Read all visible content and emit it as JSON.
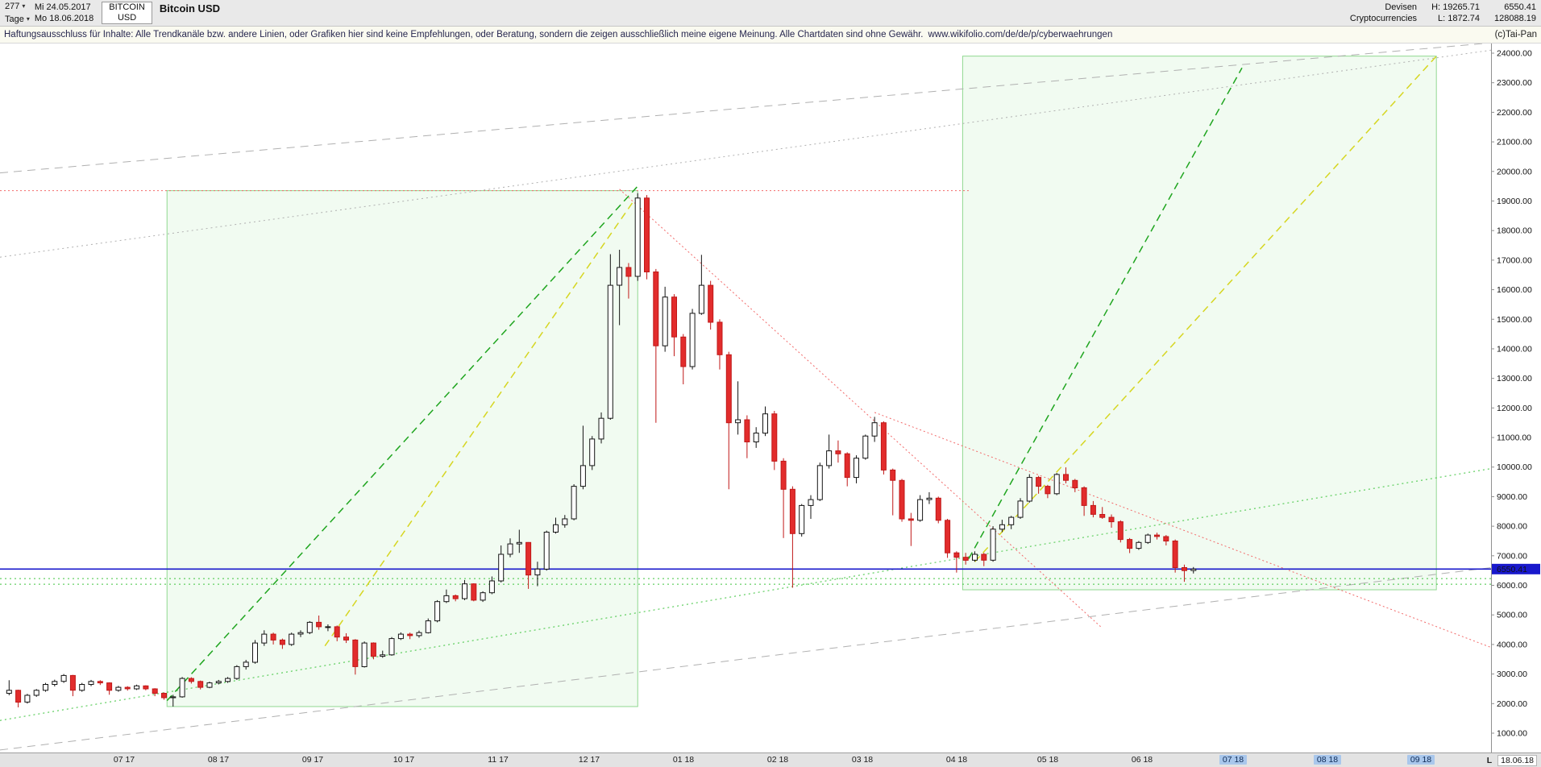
{
  "icons": {
    "caret_down": "▾"
  },
  "header": {
    "bars_count": "277",
    "period": "Tage",
    "date_from": "Mi 24.05.2017",
    "date_to": "Mo 18.06.2018",
    "symbol": "BITCOIN",
    "symbol_currency": "USD",
    "title": "Bitcoin USD",
    "category_line1": "Devisen",
    "category_line2": "Cryptocurrencies",
    "high": "H: 19265.71",
    "low": "L: 1872.74",
    "last": "6550.41",
    "secondary_value": "128088.19"
  },
  "disclaimer": {
    "text": "Haftungsausschluss für Inhalte: Alle Trendkanäle bzw. andere Linien, oder Grafiken hier sind keine Empfehlungen, oder Beratung, sondern die zeigen ausschließlich meine eigene Meinung. Alle Chartdaten sind ohne Gewähr.",
    "link": "www.wikifolio.com/de/de/p/cyberwaehrungen",
    "copyright": "(c)Tai-Pan"
  },
  "x_axis_end": {
    "prefix": "L",
    "date": "18.06.18"
  },
  "chart_data": {
    "type": "candlestick",
    "title": "Bitcoin USD, daily candles, 24.05.2017 - 18.06.2018",
    "x_unit": "days since 2017-05-24",
    "domain": {
      "day_min": -3,
      "day_max": 488,
      "price_top": 24000,
      "price_bottom": 1000
    },
    "y_axis": {
      "ticks": [
        1000,
        2000,
        3000,
        4000,
        5000,
        6000,
        7000,
        8000,
        9000,
        10000,
        11000,
        12000,
        13000,
        14000,
        15000,
        16000,
        17000,
        18000,
        19000,
        20000,
        21000,
        22000,
        23000,
        24000
      ],
      "format": "x.00"
    },
    "x_ticks": [
      {
        "label": "07 17",
        "day": 38
      },
      {
        "label": "08 17",
        "day": 69
      },
      {
        "label": "09 17",
        "day": 100
      },
      {
        "label": "10 17",
        "day": 130
      },
      {
        "label": "11 17",
        "day": 161
      },
      {
        "label": "12 17",
        "day": 191
      },
      {
        "label": "01 18",
        "day": 222
      },
      {
        "label": "02 18",
        "day": 253
      },
      {
        "label": "03 18",
        "day": 281
      },
      {
        "label": "04 18",
        "day": 312
      },
      {
        "label": "05 18",
        "day": 342
      },
      {
        "label": "06 18",
        "day": 373
      },
      {
        "label": "07 18",
        "day": 403,
        "future": true
      },
      {
        "label": "08 18",
        "day": 434,
        "future": true
      },
      {
        "label": "09 18",
        "day": 465,
        "future": true
      }
    ],
    "last_price_marker": {
      "value": 6550.41,
      "label": "6550.41",
      "color": "#1818cc"
    },
    "colors": {
      "up_fill": "#ffffff",
      "up_stroke": "#141414",
      "down_fill": "#e22c2c",
      "down_stroke": "#c01818"
    },
    "boxes": [
      {
        "name": "trend-box-2017",
        "day1": 52,
        "day2": 207,
        "price1": 1900,
        "price2": 19350,
        "fill": "rgba(150,225,150,0.13)",
        "stroke": "#90d890"
      },
      {
        "name": "trend-box-2018",
        "day1": 314,
        "day2": 470,
        "price1": 5850,
        "price2": 23900,
        "fill": "rgba(150,225,150,0.13)",
        "stroke": "#90d890"
      }
    ],
    "lines": [
      {
        "name": "resistance-19350-red-dotted",
        "color": "#f26a6a",
        "dash": "2 3",
        "w": 1,
        "pts": [
          [
            -3,
            19350
          ],
          [
            316,
            19350
          ]
        ]
      },
      {
        "name": "downtrend-steep-red-dotted",
        "color": "#f26a6a",
        "dash": "2 3",
        "w": 1,
        "pts": [
          [
            201,
            19400
          ],
          [
            360,
            4550
          ]
        ]
      },
      {
        "name": "downtrend-shallow-red-dotted",
        "color": "#f26a6a",
        "dash": "2 3",
        "w": 1,
        "pts": [
          [
            285,
            11850
          ],
          [
            488,
            3900
          ]
        ]
      },
      {
        "name": "gray-channel-upper-dashed",
        "color": "#b0b0b0",
        "dash": "10 7",
        "w": 1,
        "pts": [
          [
            -3,
            19950
          ],
          [
            488,
            24350
          ]
        ]
      },
      {
        "name": "gray-channel-mid-dotted",
        "color": "#b0b0b0",
        "dash": "2 4",
        "w": 1,
        "pts": [
          [
            -3,
            17100
          ],
          [
            488,
            24100
          ]
        ]
      },
      {
        "name": "gray-channel-lower-dashed",
        "color": "#b0b0b0",
        "dash": "10 7",
        "w": 1,
        "pts": [
          [
            -3,
            430
          ],
          [
            488,
            6600
          ]
        ]
      },
      {
        "name": "green-support-diagonal-dotted",
        "color": "#3ec43e",
        "dash": "2 4",
        "w": 1,
        "pts": [
          [
            -3,
            1430
          ],
          [
            488,
            9950
          ]
        ]
      },
      {
        "name": "green-support-6230-dotted",
        "color": "#3ec43e",
        "dash": "2 4",
        "w": 1,
        "pts": [
          [
            -3,
            6230
          ],
          [
            488,
            6230
          ]
        ]
      },
      {
        "name": "green-support-6040-dotted",
        "color": "#3ec43e",
        "dash": "2 4",
        "w": 1,
        "pts": [
          [
            -3,
            6040
          ],
          [
            488,
            6040
          ]
        ]
      },
      {
        "name": "uptrend-2017-green-dashed",
        "color": "#1fa51f",
        "dash": "9 6",
        "w": 1.5,
        "pts": [
          [
            52,
            2100
          ],
          [
            207,
            19500
          ]
        ]
      },
      {
        "name": "uptrend-2017-yellow-dashed",
        "color": "#d6d621",
        "dash": "9 6",
        "w": 1.5,
        "pts": [
          [
            104,
            3950
          ],
          [
            206,
            19050
          ]
        ]
      },
      {
        "name": "uptrend-2018-green-dashed",
        "color": "#1fa51f",
        "dash": "9 6",
        "w": 1.5,
        "pts": [
          [
            316,
            6900
          ],
          [
            406,
            23500
          ]
        ]
      },
      {
        "name": "uptrend-2018-yellow-dashed",
        "color": "#d6d621",
        "dash": "9 6",
        "w": 1.5,
        "pts": [
          [
            318,
            6800
          ],
          [
            470,
            23900
          ]
        ]
      },
      {
        "name": "last-price-blue-line",
        "color": "#1818cc",
        "dash": "",
        "w": 1.6,
        "pts": [
          [
            -3,
            6550.41
          ],
          [
            488,
            6550.41
          ]
        ]
      }
    ],
    "candles": [
      [
        0,
        2350,
        2790,
        2280,
        2450
      ],
      [
        3,
        2450,
        2470,
        1872,
        2050
      ],
      [
        6,
        2050,
        2330,
        2000,
        2280
      ],
      [
        9,
        2280,
        2490,
        2230,
        2450
      ],
      [
        12,
        2450,
        2700,
        2400,
        2650
      ],
      [
        15,
        2650,
        2810,
        2580,
        2750
      ],
      [
        18,
        2750,
        3000,
        2700,
        2950
      ],
      [
        21,
        2950,
        2970,
        2250,
        2450
      ],
      [
        24,
        2450,
        2700,
        2400,
        2650
      ],
      [
        27,
        2650,
        2800,
        2590,
        2750
      ],
      [
        30,
        2750,
        2790,
        2630,
        2700
      ],
      [
        33,
        2700,
        2720,
        2300,
        2450
      ],
      [
        36,
        2450,
        2600,
        2400,
        2550
      ],
      [
        39,
        2550,
        2590,
        2440,
        2500
      ],
      [
        42,
        2500,
        2640,
        2460,
        2600
      ],
      [
        45,
        2600,
        2620,
        2450,
        2500
      ],
      [
        48,
        2500,
        2520,
        2250,
        2350
      ],
      [
        51,
        2350,
        2380,
        2130,
        2200
      ],
      [
        54,
        2200,
        2300,
        1900,
        2230
      ],
      [
        57,
        2230,
        2900,
        2200,
        2850
      ],
      [
        60,
        2850,
        2890,
        2680,
        2750
      ],
      [
        63,
        2750,
        2780,
        2480,
        2550
      ],
      [
        66,
        2550,
        2740,
        2520,
        2700
      ],
      [
        69,
        2700,
        2800,
        2650,
        2750
      ],
      [
        72,
        2750,
        2900,
        2700,
        2850
      ],
      [
        75,
        2850,
        3300,
        2800,
        3250
      ],
      [
        78,
        3250,
        3480,
        3150,
        3400
      ],
      [
        81,
        3400,
        4150,
        3350,
        4050
      ],
      [
        84,
        4050,
        4480,
        3950,
        4350
      ],
      [
        87,
        4350,
        4400,
        4000,
        4150
      ],
      [
        90,
        4150,
        4200,
        3850,
        4000
      ],
      [
        93,
        4000,
        4400,
        3950,
        4350
      ],
      [
        96,
        4350,
        4480,
        4250,
        4400
      ],
      [
        99,
        4400,
        4790,
        4350,
        4750
      ],
      [
        102,
        4750,
        4980,
        4500,
        4600
      ],
      [
        105,
        4600,
        4680,
        4450,
        4600
      ],
      [
        108,
        4600,
        4640,
        4110,
        4250
      ],
      [
        111,
        4250,
        4380,
        4050,
        4150
      ],
      [
        114,
        4150,
        4180,
        2980,
        3250
      ],
      [
        117,
        3250,
        4100,
        3220,
        4050
      ],
      [
        120,
        4050,
        4070,
        3500,
        3600
      ],
      [
        123,
        3600,
        3790,
        3550,
        3650
      ],
      [
        126,
        3650,
        4250,
        3620,
        4200
      ],
      [
        129,
        4200,
        4410,
        4150,
        4350
      ],
      [
        132,
        4350,
        4400,
        4180,
        4300
      ],
      [
        135,
        4300,
        4470,
        4230,
        4400
      ],
      [
        138,
        4400,
        4880,
        4370,
        4800
      ],
      [
        141,
        4800,
        5500,
        4750,
        5450
      ],
      [
        144,
        5450,
        5860,
        5400,
        5650
      ],
      [
        147,
        5650,
        5690,
        5460,
        5550
      ],
      [
        150,
        5550,
        6180,
        5500,
        6050
      ],
      [
        153,
        6050,
        6070,
        5460,
        5500
      ],
      [
        156,
        5500,
        5800,
        5440,
        5750
      ],
      [
        159,
        5750,
        6300,
        5700,
        6150
      ],
      [
        162,
        6150,
        7350,
        6100,
        7050
      ],
      [
        165,
        7050,
        7590,
        6950,
        7400
      ],
      [
        168,
        7400,
        7880,
        7100,
        7450
      ],
      [
        171,
        7450,
        7460,
        5880,
        6350
      ],
      [
        174,
        6350,
        6800,
        5970,
        6550
      ],
      [
        177,
        6550,
        7850,
        6500,
        7800
      ],
      [
        180,
        7800,
        8290,
        7750,
        8050
      ],
      [
        183,
        8050,
        8380,
        7950,
        8250
      ],
      [
        186,
        8250,
        9420,
        8200,
        9350
      ],
      [
        189,
        9350,
        11400,
        9250,
        10050
      ],
      [
        192,
        10050,
        11050,
        9900,
        10950
      ],
      [
        195,
        10950,
        11850,
        10800,
        11650
      ],
      [
        198,
        11650,
        17200,
        11600,
        16150
      ],
      [
        201,
        16150,
        17350,
        14800,
        16750
      ],
      [
        204,
        16750,
        16900,
        15700,
        16450
      ],
      [
        207,
        16450,
        19265,
        16300,
        19100
      ],
      [
        210,
        19100,
        19200,
        16350,
        16600
      ],
      [
        213,
        16600,
        16700,
        11500,
        14100
      ],
      [
        216,
        14100,
        16100,
        13900,
        15750
      ],
      [
        219,
        15750,
        15850,
        13750,
        14400
      ],
      [
        222,
        14400,
        14500,
        12800,
        13400
      ],
      [
        225,
        13400,
        15350,
        13300,
        15200
      ],
      [
        228,
        15200,
        17180,
        15150,
        16150
      ],
      [
        231,
        16150,
        16300,
        14650,
        14900
      ],
      [
        234,
        14900,
        15000,
        13300,
        13800
      ],
      [
        237,
        13800,
        13900,
        9250,
        11500
      ],
      [
        240,
        11500,
        12900,
        11100,
        11600
      ],
      [
        243,
        11600,
        11750,
        10300,
        10850
      ],
      [
        246,
        10850,
        11350,
        10650,
        11150
      ],
      [
        249,
        11150,
        12050,
        11050,
        11800
      ],
      [
        252,
        11800,
        11900,
        9900,
        10200
      ],
      [
        255,
        10200,
        10300,
        7600,
        9250
      ],
      [
        258,
        9250,
        9350,
        5920,
        7750
      ],
      [
        261,
        7750,
        8750,
        7650,
        8700
      ],
      [
        264,
        8700,
        9050,
        8250,
        8900
      ],
      [
        267,
        8900,
        10150,
        8850,
        10050
      ],
      [
        270,
        10050,
        11100,
        9950,
        10550
      ],
      [
        273,
        10550,
        10900,
        10150,
        10450
      ],
      [
        276,
        10450,
        10500,
        9350,
        9650
      ],
      [
        279,
        9650,
        10400,
        9450,
        10300
      ],
      [
        282,
        10300,
        11100,
        10250,
        11050
      ],
      [
        285,
        11050,
        11700,
        10850,
        11500
      ],
      [
        288,
        11500,
        11550,
        9750,
        9900
      ],
      [
        291,
        9900,
        9950,
        8370,
        9550
      ],
      [
        294,
        9550,
        9600,
        8150,
        8250
      ],
      [
        297,
        8250,
        8450,
        7330,
        8200
      ],
      [
        300,
        8200,
        9050,
        8150,
        8900
      ],
      [
        303,
        8900,
        9150,
        8750,
        8950
      ],
      [
        306,
        8950,
        9000,
        8100,
        8200
      ],
      [
        309,
        8200,
        8250,
        6930,
        7100
      ],
      [
        312,
        7100,
        7150,
        6430,
        6950
      ],
      [
        315,
        6950,
        7100,
        6700,
        6850
      ],
      [
        318,
        6850,
        7150,
        6800,
        7050
      ],
      [
        321,
        7050,
        7100,
        6650,
        6850
      ],
      [
        324,
        6850,
        8000,
        6800,
        7900
      ],
      [
        327,
        7900,
        8220,
        7800,
        8050
      ],
      [
        330,
        8050,
        8350,
        7900,
        8300
      ],
      [
        333,
        8300,
        8950,
        8250,
        8850
      ],
      [
        336,
        8850,
        9760,
        8800,
        9650
      ],
      [
        339,
        9650,
        9700,
        9100,
        9350
      ],
      [
        342,
        9350,
        9400,
        8950,
        9100
      ],
      [
        345,
        9100,
        9800,
        9050,
        9750
      ],
      [
        348,
        9750,
        9990,
        9450,
        9550
      ],
      [
        351,
        9550,
        9600,
        9150,
        9300
      ],
      [
        354,
        9300,
        9350,
        8350,
        8700
      ],
      [
        357,
        8700,
        8850,
        8300,
        8400
      ],
      [
        360,
        8400,
        8650,
        8250,
        8300
      ],
      [
        363,
        8300,
        8400,
        7950,
        8150
      ],
      [
        366,
        8150,
        8200,
        7450,
        7550
      ],
      [
        369,
        7550,
        7600,
        7090,
        7250
      ],
      [
        372,
        7250,
        7500,
        7200,
        7450
      ],
      [
        375,
        7450,
        7750,
        7400,
        7700
      ],
      [
        378,
        7700,
        7780,
        7550,
        7650
      ],
      [
        381,
        7650,
        7700,
        7350,
        7500
      ],
      [
        384,
        7500,
        7550,
        6430,
        6600
      ],
      [
        387,
        6600,
        6700,
        6120,
        6500
      ],
      [
        390,
        6500,
        6620,
        6400,
        6550
      ]
    ]
  }
}
